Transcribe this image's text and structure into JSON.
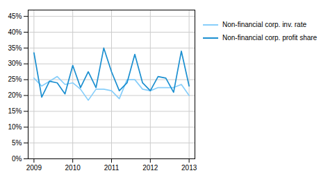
{
  "chart_data": {
    "type": "line",
    "x": [
      2009,
      2009.2,
      2009.4,
      2009.6,
      2009.8,
      2010,
      2010.2,
      2010.4,
      2010.6,
      2010.8,
      2011,
      2011.2,
      2011.4,
      2011.6,
      2011.8,
      2012,
      2012.2,
      2012.4,
      2012.6,
      2012.8,
      2013
    ],
    "series": [
      {
        "name": "Non-financial corp. inv. rate",
        "color": "#87CEFA",
        "values": [
          25.5,
          23.0,
          24.5,
          26.0,
          23.5,
          24.0,
          22.0,
          18.5,
          22.0,
          22.0,
          21.5,
          19.0,
          25.0,
          25.0,
          22.0,
          21.5,
          22.5,
          22.5,
          22.5,
          23.5,
          20.0
        ]
      },
      {
        "name": "Non-financial corp. profit share",
        "color": "#1B8FD0",
        "values": [
          33.5,
          19.5,
          24.5,
          24.0,
          20.5,
          29.5,
          22.5,
          27.5,
          22.5,
          35.0,
          27.5,
          21.5,
          24.0,
          33.0,
          24.0,
          21.5,
          26.0,
          25.5,
          21.0,
          34.0,
          23.0
        ]
      }
    ],
    "xlim": [
      2008.85,
      2013.15
    ],
    "xticks": [
      2009,
      2010,
      2011,
      2012,
      2013
    ],
    "ylim": [
      0,
      47
    ],
    "yticks": [
      {
        "value": 0,
        "label": "0%"
      },
      {
        "value": 5,
        "label": "5%"
      },
      {
        "value": 10,
        "label": "10%"
      },
      {
        "value": 15,
        "label": "15%"
      },
      {
        "value": 20,
        "label": "20%"
      },
      {
        "value": 25,
        "label": "25%"
      },
      {
        "value": 30,
        "label": "30%"
      },
      {
        "value": 35,
        "label": "35%"
      },
      {
        "value": 40,
        "label": "40%"
      },
      {
        "value": 45,
        "label": "45%"
      }
    ],
    "grid": true,
    "legend": "right"
  }
}
